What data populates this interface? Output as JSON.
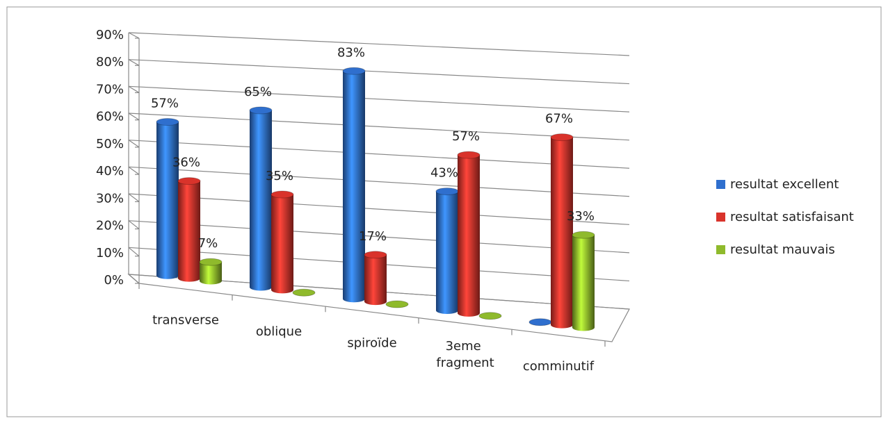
{
  "chart_data": {
    "type": "bar3d",
    "categories": [
      "transverse",
      "oblique",
      "spiroïde",
      "3eme fragment",
      "comminutif"
    ],
    "series": [
      {
        "name": "resultat excellent",
        "color": "#2f6fce",
        "values": [
          57,
          65,
          83,
          43,
          0
        ],
        "value_labels": [
          "57%",
          "65%",
          "83%",
          "43%",
          null
        ]
      },
      {
        "name": "resultat satisfaisant",
        "color": "#d9332b",
        "values": [
          36,
          35,
          17,
          57,
          67
        ],
        "value_labels": [
          "36%",
          "35%",
          "17%",
          "57%",
          "67%"
        ]
      },
      {
        "name": "resultat mauvais",
        "color": "#8fba2c",
        "values": [
          7,
          0,
          0,
          0,
          33
        ],
        "value_labels": [
          "7%",
          null,
          null,
          null,
          "33%"
        ]
      }
    ],
    "ylim": [
      0,
      90
    ],
    "yticks": [
      {
        "value": 0,
        "label": "0%"
      },
      {
        "value": 10,
        "label": "10%"
      },
      {
        "value": 20,
        "label": "20%"
      },
      {
        "value": 30,
        "label": "30%"
      },
      {
        "value": 40,
        "label": "40%"
      },
      {
        "value": 50,
        "label": "50%"
      },
      {
        "value": 60,
        "label": "60%"
      },
      {
        "value": 70,
        "label": "70%"
      },
      {
        "value": 80,
        "label": "80%"
      },
      {
        "value": 90,
        "label": "90%"
      }
    ],
    "grid": true,
    "legend": "right"
  }
}
